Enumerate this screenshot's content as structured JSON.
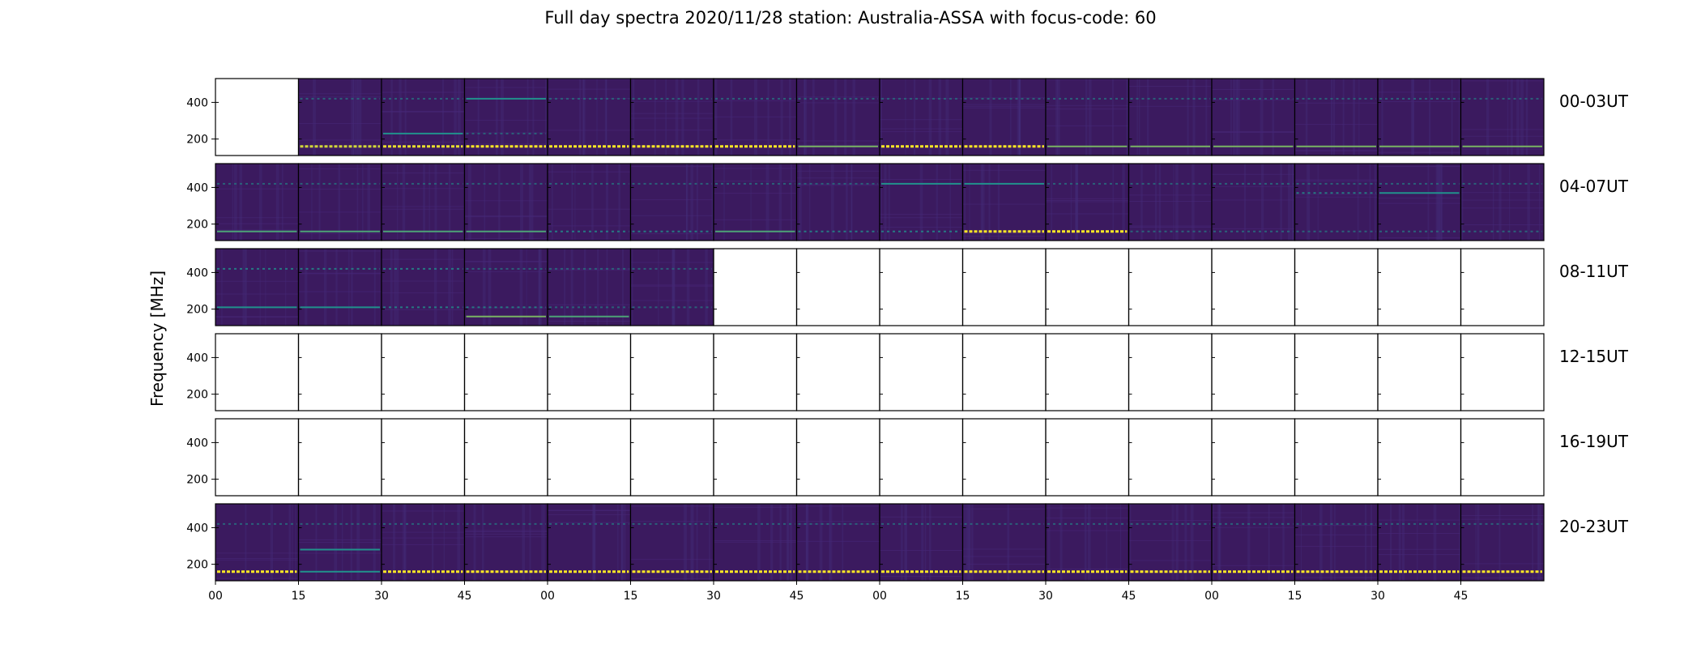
{
  "chart_data": {
    "type": "heatmap",
    "title": "Full day spectra 2020/11/28 station: Australia-ASSA with focus-code: 60",
    "ylabel": "Frequency [MHz]",
    "xlabel": "",
    "ylim": [
      110,
      530
    ],
    "yticks": [
      200,
      400
    ],
    "xtick_labels": [
      "00",
      "15",
      "30",
      "45",
      "00",
      "15",
      "30",
      "45",
      "00",
      "15",
      "30",
      "45",
      "00",
      "15",
      "30",
      "45"
    ],
    "colormap": {
      "low": "#3b1a5f",
      "mid": "#21918c",
      "high": "#fde725"
    },
    "rows": [
      {
        "label": "00-03UT",
        "available": [
          0,
          1,
          1,
          1,
          1,
          1,
          1,
          1,
          1,
          1,
          1,
          1,
          1,
          1,
          1,
          1
        ],
        "lines": [
          {
            "freq": 160,
            "intensity": [
              0,
              0.9,
              0.95,
              1,
              1,
              1,
              1,
              0.7,
              1,
              1,
              0.7,
              0.7,
              0.7,
              0.7,
              0.7,
              0.7
            ]
          },
          {
            "freq": 420,
            "intensity": [
              0,
              0.3,
              0.3,
              0.5,
              0.3,
              0.3,
              0.3,
              0.3,
              0.3,
              0.3,
              0.3,
              0.3,
              0.3,
              0.3,
              0.3,
              0.3
            ]
          },
          {
            "freq": 230,
            "intensity": [
              0,
              0,
              0.5,
              0.3,
              0,
              0,
              0,
              0,
              0,
              0,
              0,
              0,
              0,
              0,
              0,
              0
            ]
          }
        ]
      },
      {
        "label": "04-07UT",
        "available": [
          1,
          1,
          1,
          1,
          1,
          1,
          1,
          1,
          1,
          1,
          1,
          1,
          1,
          1,
          1,
          1
        ],
        "lines": [
          {
            "freq": 160,
            "intensity": [
              0.6,
              0.6,
              0.6,
              0.6,
              0.4,
              0.4,
              0.6,
              0.4,
              0.4,
              1,
              1,
              0.3,
              0.3,
              0.3,
              0.3,
              0.3
            ]
          },
          {
            "freq": 420,
            "intensity": [
              0.3,
              0.3,
              0.3,
              0.3,
              0.3,
              0.3,
              0.3,
              0.3,
              0.5,
              0.5,
              0.3,
              0.3,
              0.3,
              0.3,
              0.3,
              0.3
            ]
          },
          {
            "freq": 370,
            "intensity": [
              0,
              0,
              0,
              0,
              0,
              0,
              0,
              0,
              0,
              0,
              0,
              0,
              0,
              0.4,
              0.5,
              0
            ]
          }
        ]
      },
      {
        "label": "08-11UT",
        "available": [
          1,
          1,
          1,
          1,
          1,
          1,
          0,
          0,
          0,
          0,
          0,
          0,
          0,
          0,
          0,
          0
        ],
        "lines": [
          {
            "freq": 210,
            "intensity": [
              0.5,
              0.5,
              0.4,
              0.4,
              0.3,
              0.3,
              0,
              0,
              0,
              0,
              0,
              0,
              0,
              0,
              0,
              0
            ]
          },
          {
            "freq": 160,
            "intensity": [
              0,
              0,
              0,
              0.7,
              0.6,
              0,
              0,
              0,
              0,
              0,
              0,
              0,
              0,
              0,
              0,
              0
            ]
          },
          {
            "freq": 420,
            "intensity": [
              0.4,
              0.4,
              0.4,
              0.3,
              0.3,
              0.3,
              0,
              0,
              0,
              0,
              0,
              0,
              0,
              0,
              0,
              0
            ]
          }
        ]
      },
      {
        "label": "12-15UT",
        "available": [
          0,
          0,
          0,
          0,
          0,
          0,
          0,
          0,
          0,
          0,
          0,
          0,
          0,
          0,
          0,
          0
        ],
        "lines": []
      },
      {
        "label": "16-19UT",
        "available": [
          0,
          0,
          0,
          0,
          0,
          0,
          0,
          0,
          0,
          0,
          0,
          0,
          0,
          0,
          0,
          0
        ],
        "lines": []
      },
      {
        "label": "20-23UT",
        "available": [
          1,
          1,
          1,
          1,
          1,
          1,
          1,
          1,
          1,
          1,
          1,
          1,
          1,
          1,
          1,
          1
        ],
        "lines": [
          {
            "freq": 160,
            "intensity": [
              1,
              0.5,
              1,
              1,
              1,
              1,
              1,
              1,
              1,
              1,
              1,
              1,
              1,
              1,
              1,
              1
            ]
          },
          {
            "freq": 420,
            "intensity": [
              0.3,
              0.3,
              0.3,
              0.3,
              0.3,
              0.3,
              0.3,
              0.3,
              0.3,
              0.3,
              0.3,
              0.3,
              0.3,
              0.3,
              0.3,
              0.3
            ]
          },
          {
            "freq": 280,
            "intensity": [
              0,
              0.5,
              0,
              0,
              0,
              0,
              0,
              0,
              0,
              0,
              0,
              0,
              0,
              0,
              0,
              0
            ]
          }
        ]
      }
    ]
  }
}
